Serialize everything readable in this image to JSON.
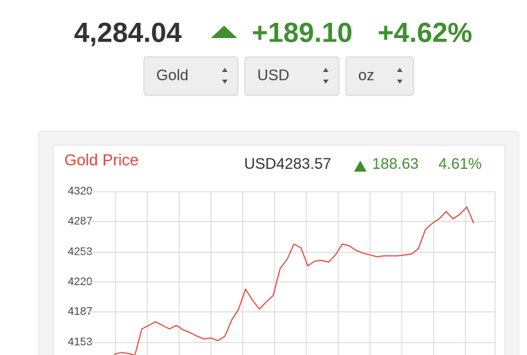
{
  "header": {
    "price": "4,284.04",
    "change": "+189.10",
    "change_percent": "+4.62%"
  },
  "selects": [
    "Gold",
    "USD",
    "oz"
  ],
  "chart_data": {
    "type": "line",
    "title": "Gold Price",
    "quote": "USD4283.57",
    "quote_change": "188.63",
    "quote_change_percent": "4.61%",
    "series": [
      {
        "name": null,
        "color": "#e2463c",
        "values": [
          4140,
          4142,
          4141,
          4139,
          4168,
          4172,
          4176,
          4172,
          4168,
          4172,
          4167,
          4164,
          4160,
          4157,
          4158,
          4155,
          4160,
          4178,
          4190,
          4212,
          4200,
          4190,
          4198,
          4205,
          4235,
          4245,
          4262,
          4258,
          4238,
          4243,
          4244,
          4242,
          4250,
          4262,
          4260,
          4255,
          4252,
          4250,
          4248,
          4249,
          4249,
          4249,
          4250,
          4251,
          4257,
          4278,
          4285,
          4290,
          4298,
          4290,
          4295,
          4303,
          4285
        ]
      }
    ],
    "ylim": [
      4140,
      4320
    ],
    "yticks": [
      4320,
      4287,
      4253,
      4220,
      4187,
      4153
    ],
    "grid": true
  }
}
